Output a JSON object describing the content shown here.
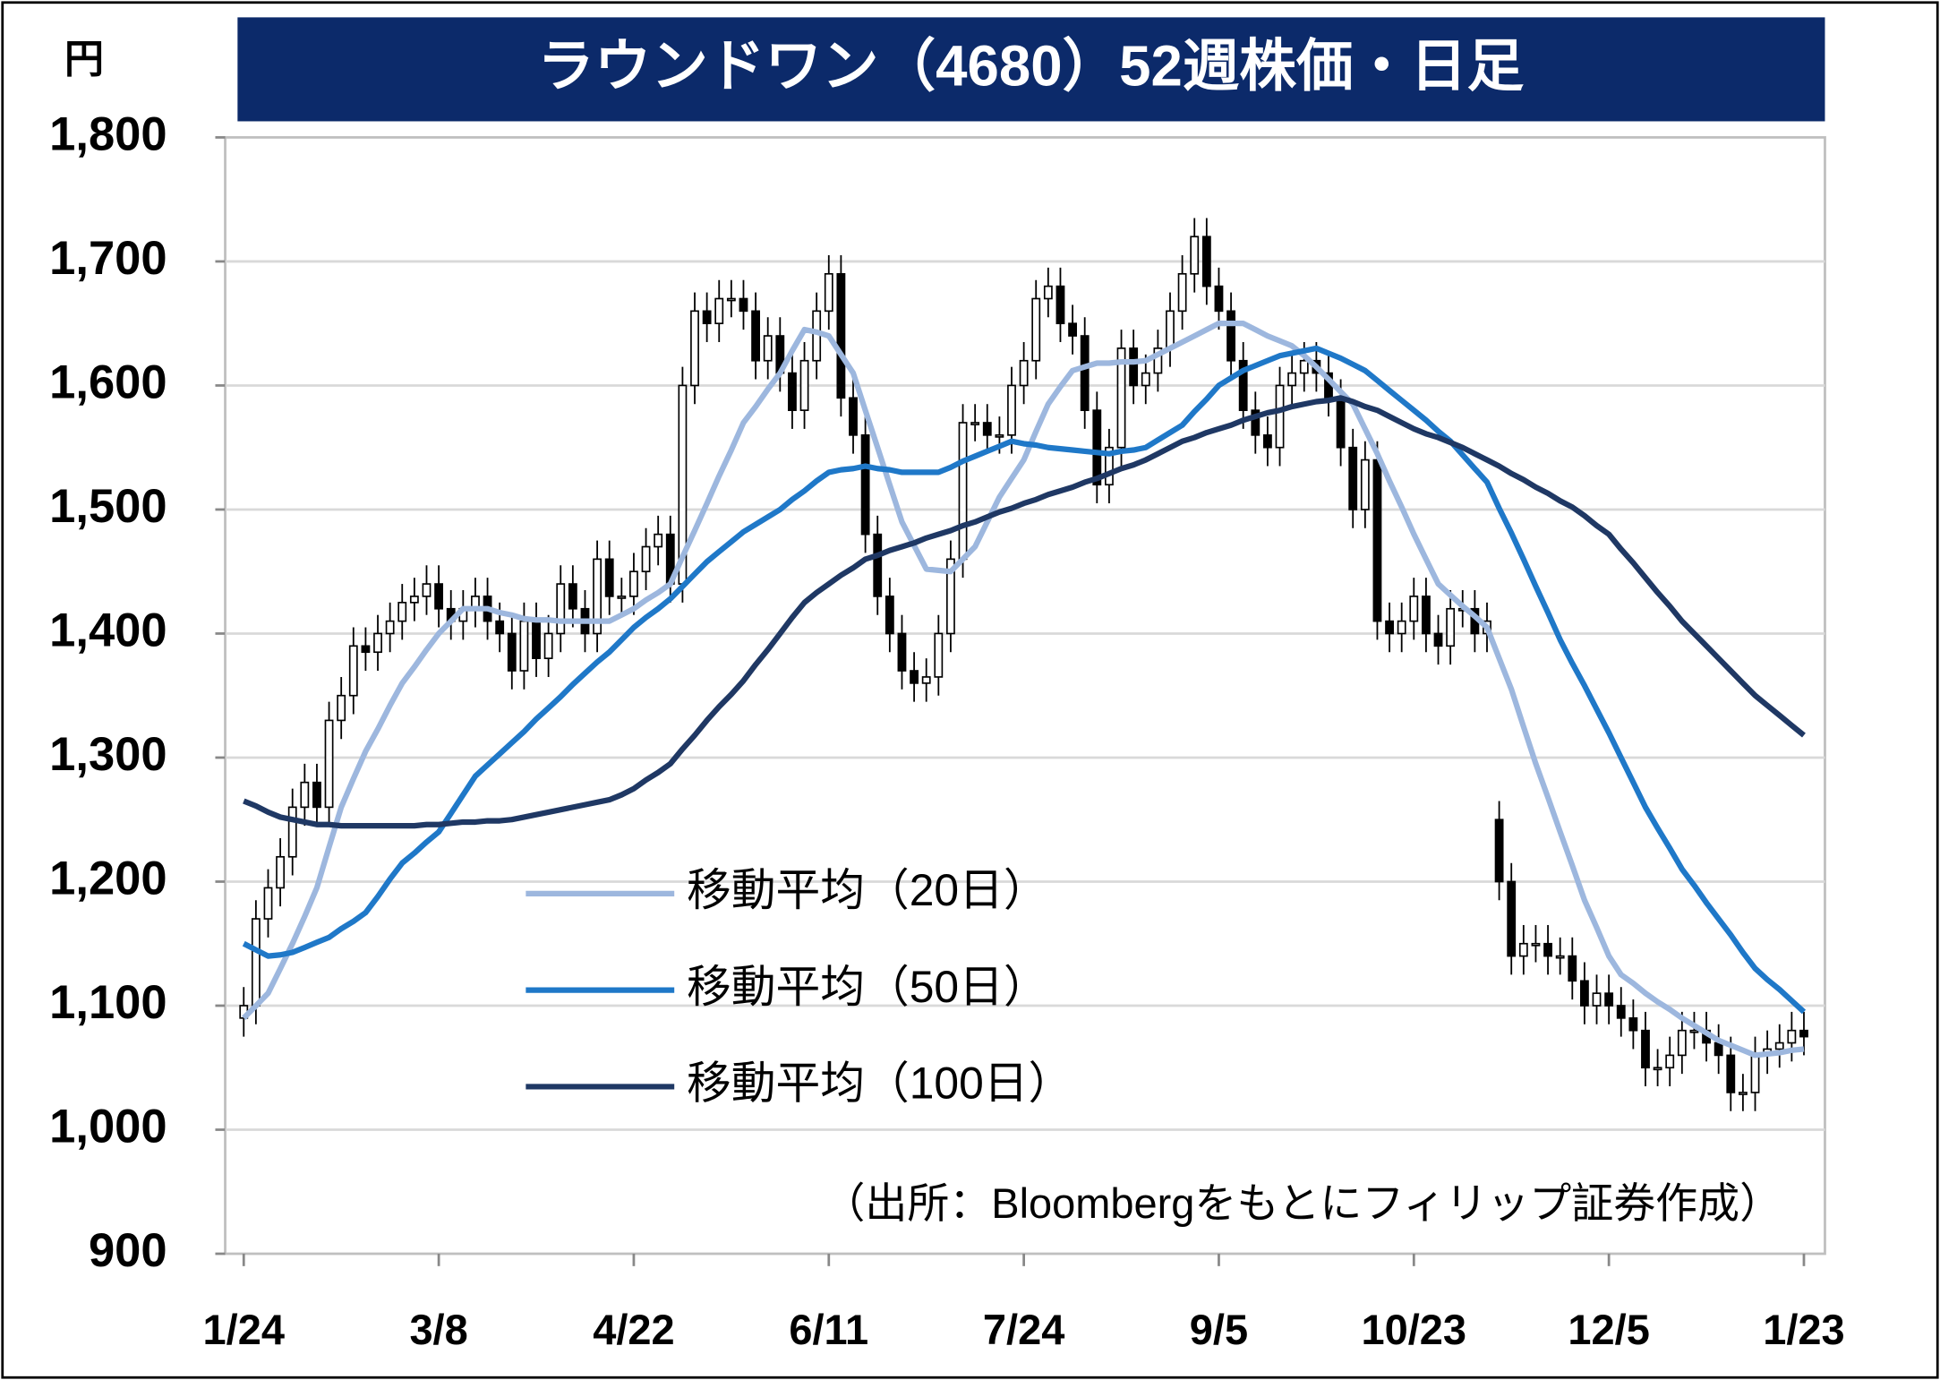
{
  "chart_data": {
    "type": "candlestick",
    "title": "ラウンドワン（4680）52週株価・日足",
    "y_unit": "円",
    "source": "（出所：Bloombergをもとにフィリップ証券作成）",
    "ylim": [
      900,
      1800
    ],
    "yticks": [
      900,
      {
        "value": 1000,
        "label": "1,000"
      },
      {
        "value": 1100,
        "label": "1,100"
      },
      {
        "value": 1200,
        "label": "1,200"
      },
      {
        "value": 1300,
        "label": "1,300"
      },
      {
        "value": 1400,
        "label": "1,400"
      },
      {
        "value": 1500,
        "label": "1,500"
      },
      {
        "value": 1600,
        "label": "1,600"
      },
      {
        "value": 1700,
        "label": "1,700"
      },
      {
        "value": 1800,
        "label": "1,800"
      }
    ],
    "grid": true,
    "categories": [
      "1/24",
      null,
      null,
      null,
      null,
      null,
      null,
      null,
      null,
      null,
      null,
      null,
      null,
      null,
      null,
      null,
      "3/8",
      null,
      null,
      null,
      null,
      null,
      null,
      null,
      null,
      null,
      null,
      null,
      null,
      null,
      null,
      null,
      "4/22",
      null,
      null,
      null,
      null,
      null,
      null,
      null,
      null,
      null,
      null,
      null,
      null,
      null,
      null,
      null,
      "6/11",
      null,
      null,
      null,
      null,
      null,
      null,
      null,
      null,
      null,
      null,
      null,
      null,
      null,
      null,
      null,
      "7/24",
      null,
      null,
      null,
      null,
      null,
      null,
      null,
      null,
      null,
      null,
      null,
      null,
      null,
      null,
      null,
      "9/5",
      null,
      null,
      null,
      null,
      null,
      null,
      null,
      null,
      null,
      null,
      null,
      null,
      null,
      null,
      null,
      "10/23",
      null,
      null,
      null,
      null,
      null,
      null,
      null,
      null,
      null,
      null,
      null,
      null,
      null,
      null,
      null,
      "12/5",
      null,
      null,
      null,
      null,
      null,
      null,
      null,
      null,
      null,
      null,
      null,
      null,
      null,
      null,
      null,
      "1/23"
    ],
    "open": [
      1090,
      1100,
      1170,
      1195,
      1220,
      1260,
      1280,
      1260,
      1330,
      1350,
      1390,
      1385,
      1400,
      1410,
      1425,
      1430,
      1440,
      1420,
      1410,
      1420,
      1430,
      1410,
      1400,
      1370,
      1410,
      1380,
      1400,
      1440,
      1420,
      1400,
      1460,
      1430,
      1430,
      1450,
      1470,
      1480,
      1440,
      1600,
      1660,
      1650,
      1670,
      1670,
      1660,
      1620,
      1640,
      1610,
      1580,
      1620,
      1660,
      1690,
      1590,
      1560,
      1480,
      1430,
      1400,
      1370,
      1360,
      1365,
      1400,
      1460,
      1570,
      1570,
      1560,
      1560,
      1600,
      1620,
      1670,
      1680,
      1650,
      1640,
      1580,
      1520,
      1550,
      1630,
      1600,
      1610,
      1630,
      1660,
      1690,
      1720,
      1680,
      1660,
      1620,
      1580,
      1560,
      1550,
      1600,
      1610,
      1620,
      1610,
      1590,
      1550,
      1500,
      1540,
      1410,
      1400,
      1410,
      1430,
      1400,
      1390,
      1420,
      1420,
      1400,
      1250,
      1200,
      1140,
      1150,
      1150,
      1140,
      1140,
      1120,
      1100,
      1110,
      1100,
      1090,
      1080,
      1050,
      1050,
      1060,
      1080,
      1080,
      1070,
      1060,
      1030,
      1030,
      1060,
      1065,
      1070,
      1080
    ],
    "high": [
      1115,
      1185,
      1210,
      1235,
      1275,
      1295,
      1295,
      1345,
      1365,
      1405,
      1405,
      1415,
      1425,
      1440,
      1445,
      1455,
      1455,
      1435,
      1435,
      1445,
      1445,
      1425,
      1415,
      1425,
      1425,
      1415,
      1455,
      1455,
      1435,
      1475,
      1475,
      1445,
      1465,
      1485,
      1495,
      1495,
      1615,
      1675,
      1675,
      1685,
      1685,
      1685,
      1675,
      1655,
      1655,
      1625,
      1635,
      1675,
      1705,
      1705,
      1605,
      1575,
      1495,
      1445,
      1415,
      1385,
      1380,
      1415,
      1475,
      1585,
      1585,
      1585,
      1575,
      1615,
      1635,
      1685,
      1695,
      1695,
      1665,
      1655,
      1595,
      1565,
      1645,
      1645,
      1625,
      1645,
      1675,
      1705,
      1735,
      1735,
      1695,
      1675,
      1635,
      1595,
      1575,
      1615,
      1625,
      1635,
      1635,
      1625,
      1605,
      1565,
      1555,
      1555,
      1425,
      1425,
      1445,
      1445,
      1415,
      1435,
      1435,
      1435,
      1425,
      1265,
      1215,
      1165,
      1165,
      1165,
      1155,
      1155,
      1135,
      1125,
      1125,
      1115,
      1105,
      1095,
      1065,
      1075,
      1095,
      1095,
      1095,
      1085,
      1075,
      1045,
      1075,
      1080,
      1085,
      1095,
      1095
    ],
    "low": [
      1075,
      1085,
      1155,
      1180,
      1205,
      1245,
      1245,
      1245,
      1315,
      1335,
      1370,
      1370,
      1385,
      1395,
      1410,
      1415,
      1405,
      1395,
      1395,
      1405,
      1395,
      1385,
      1355,
      1355,
      1365,
      1365,
      1385,
      1405,
      1385,
      1385,
      1415,
      1415,
      1415,
      1435,
      1455,
      1425,
      1425,
      1585,
      1635,
      1635,
      1655,
      1645,
      1605,
      1605,
      1595,
      1565,
      1565,
      1605,
      1645,
      1575,
      1545,
      1465,
      1415,
      1385,
      1355,
      1345,
      1345,
      1350,
      1385,
      1445,
      1555,
      1545,
      1545,
      1545,
      1585,
      1605,
      1655,
      1635,
      1625,
      1565,
      1505,
      1505,
      1535,
      1585,
      1585,
      1595,
      1615,
      1645,
      1675,
      1665,
      1645,
      1605,
      1565,
      1545,
      1535,
      1535,
      1585,
      1595,
      1595,
      1575,
      1535,
      1485,
      1485,
      1395,
      1385,
      1385,
      1395,
      1385,
      1375,
      1375,
      1405,
      1385,
      1385,
      1185,
      1125,
      1125,
      1135,
      1125,
      1125,
      1105,
      1085,
      1085,
      1085,
      1075,
      1065,
      1035,
      1035,
      1035,
      1045,
      1065,
      1055,
      1045,
      1015,
      1015,
      1015,
      1045,
      1050,
      1055,
      1060
    ],
    "close": [
      1100,
      1170,
      1195,
      1220,
      1260,
      1280,
      1260,
      1330,
      1350,
      1390,
      1385,
      1400,
      1410,
      1425,
      1430,
      1440,
      1420,
      1410,
      1420,
      1430,
      1410,
      1400,
      1370,
      1410,
      1380,
      1400,
      1440,
      1420,
      1400,
      1460,
      1430,
      1430,
      1450,
      1470,
      1480,
      1440,
      1600,
      1660,
      1650,
      1670,
      1670,
      1660,
      1620,
      1640,
      1610,
      1580,
      1620,
      1660,
      1690,
      1590,
      1560,
      1480,
      1430,
      1400,
      1370,
      1360,
      1365,
      1400,
      1460,
      1570,
      1570,
      1560,
      1560,
      1600,
      1620,
      1670,
      1680,
      1650,
      1640,
      1580,
      1520,
      1550,
      1630,
      1600,
      1610,
      1630,
      1660,
      1690,
      1720,
      1680,
      1660,
      1620,
      1580,
      1560,
      1550,
      1600,
      1610,
      1620,
      1610,
      1590,
      1550,
      1500,
      1540,
      1410,
      1400,
      1410,
      1430,
      1400,
      1390,
      1420,
      1420,
      1400,
      1410,
      1200,
      1140,
      1150,
      1150,
      1140,
      1140,
      1120,
      1100,
      1110,
      1100,
      1090,
      1080,
      1050,
      1050,
      1060,
      1080,
      1080,
      1070,
      1060,
      1030,
      1030,
      1060,
      1065,
      1070,
      1080,
      1075
    ],
    "series": [
      {
        "name": "移動平均（20日）",
        "color": "#9db7de",
        "values": [
          1090,
          1100,
          1110,
          1130,
          1150,
          1172,
          1195,
          1228,
          1260,
          1283,
          1305,
          1323,
          1342,
          1360,
          1373,
          1387,
          1400,
          1410,
          1420,
          1420,
          1420,
          1417,
          1415,
          1412,
          1411,
          1411,
          1410,
          1410,
          1410,
          1410,
          1410,
          1415,
          1420,
          1427,
          1433,
          1440,
          1462,
          1483,
          1505,
          1527,
          1548,
          1570,
          1583,
          1597,
          1610,
          1628,
          1645,
          1643,
          1640,
          1625,
          1610,
          1580,
          1550,
          1520,
          1490,
          1471,
          1452,
          1451,
          1450,
          1460,
          1470,
          1490,
          1510,
          1525,
          1540,
          1563,
          1585,
          1599,
          1612,
          1615,
          1618,
          1618,
          1619,
          1619,
          1620,
          1625,
          1630,
          1635,
          1640,
          1645,
          1650,
          1650,
          1650,
          1645,
          1640,
          1636,
          1632,
          1624,
          1615,
          1605,
          1595,
          1585,
          1565,
          1545,
          1523,
          1502,
          1480,
          1460,
          1440,
          1431,
          1422,
          1414,
          1405,
          1380,
          1355,
          1325,
          1295,
          1268,
          1240,
          1213,
          1185,
          1163,
          1140,
          1125,
          1118,
          1110,
          1103,
          1097,
          1090,
          1084,
          1078,
          1072,
          1068,
          1064,
          1060,
          1061,
          1062,
          1064,
          1065
        ]
      },
      {
        "name": "移動平均（50日）",
        "color": "#1f78c8",
        "values": [
          1150,
          1145,
          1140,
          1141,
          1143,
          1147,
          1151,
          1155,
          1162,
          1168,
          1175,
          1188,
          1202,
          1215,
          1223,
          1232,
          1240,
          1255,
          1270,
          1285,
          1294,
          1303,
          1312,
          1321,
          1331,
          1340,
          1349,
          1359,
          1368,
          1377,
          1385,
          1395,
          1405,
          1413,
          1420,
          1428,
          1438,
          1448,
          1458,
          1466,
          1474,
          1482,
          1488,
          1494,
          1500,
          1508,
          1515,
          1523,
          1530,
          1532,
          1533,
          1535,
          1533,
          1532,
          1530,
          1530,
          1530,
          1530,
          1534,
          1539,
          1543,
          1547,
          1551,
          1555,
          1553,
          1552,
          1550,
          1549,
          1548,
          1547,
          1546,
          1545,
          1547,
          1548,
          1550,
          1556,
          1562,
          1568,
          1579,
          1589,
          1600,
          1606,
          1612,
          1616,
          1620,
          1624,
          1626,
          1628,
          1630,
          1626,
          1622,
          1617,
          1612,
          1604,
          1596,
          1588,
          1580,
          1572,
          1563,
          1555,
          1544,
          1533,
          1522,
          1501,
          1481,
          1460,
          1438,
          1417,
          1395,
          1376,
          1358,
          1339,
          1320,
          1300,
          1280,
          1260,
          1243,
          1227,
          1210,
          1197,
          1183,
          1170,
          1157,
          1143,
          1130,
          1121,
          1113,
          1104,
          1095
        ]
      },
      {
        "name": "移動平均（100日）",
        "color": "#1f3864",
        "values": [
          1265,
          1261,
          1256,
          1252,
          1250,
          1248,
          1246,
          1246,
          1245,
          1245,
          1245,
          1245,
          1245,
          1245,
          1245,
          1246,
          1246,
          1247,
          1248,
          1248,
          1249,
          1249,
          1250,
          1252,
          1254,
          1256,
          1258,
          1260,
          1262,
          1264,
          1266,
          1270,
          1275,
          1282,
          1288,
          1295,
          1307,
          1318,
          1330,
          1341,
          1351,
          1362,
          1375,
          1387,
          1400,
          1413,
          1425,
          1433,
          1440,
          1447,
          1453,
          1460,
          1463,
          1467,
          1470,
          1473,
          1477,
          1480,
          1483,
          1487,
          1490,
          1494,
          1498,
          1501,
          1505,
          1508,
          1512,
          1515,
          1518,
          1522,
          1525,
          1529,
          1533,
          1536,
          1540,
          1545,
          1550,
          1555,
          1558,
          1562,
          1565,
          1568,
          1572,
          1575,
          1578,
          1580,
          1583,
          1585,
          1587,
          1588,
          1590,
          1587,
          1583,
          1580,
          1575,
          1570,
          1565,
          1561,
          1558,
          1554,
          1550,
          1545,
          1540,
          1535,
          1529,
          1524,
          1518,
          1513,
          1507,
          1502,
          1495,
          1487,
          1480,
          1468,
          1457,
          1445,
          1433,
          1422,
          1410,
          1400,
          1390,
          1380,
          1370,
          1360,
          1350,
          1342,
          1334,
          1326,
          1318
        ]
      }
    ]
  }
}
